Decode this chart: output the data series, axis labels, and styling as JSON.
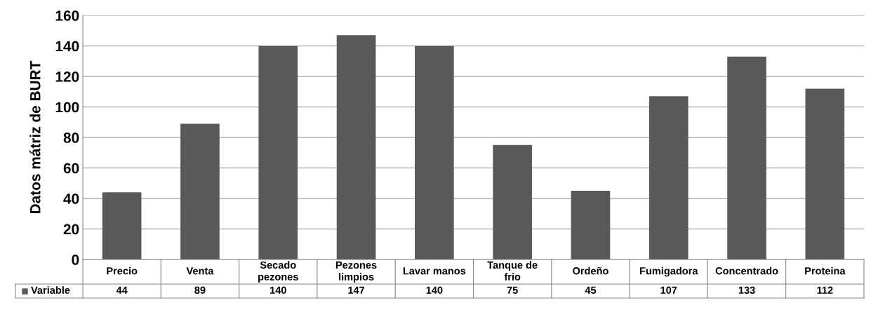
{
  "chart_data": {
    "type": "bar",
    "ylabel": "Datos mátriz de BURT",
    "categories": [
      "Precio",
      "Venta",
      "Secado\npezones",
      "Pezones\nlimpios",
      "Lavar manos",
      "Tanque de\nfrio",
      "Ordeño",
      "Fumigadora",
      "Concentrado",
      "Proteina"
    ],
    "series": [
      {
        "name": "Variable",
        "color": "#595959",
        "values": [
          44,
          89,
          140,
          147,
          140,
          75,
          45,
          107,
          133,
          112
        ]
      }
    ],
    "ylim": [
      0,
      160
    ],
    "yticks": [
      0,
      20,
      40,
      60,
      80,
      100,
      120,
      140,
      160
    ],
    "grid": "y",
    "data_labels": true
  }
}
